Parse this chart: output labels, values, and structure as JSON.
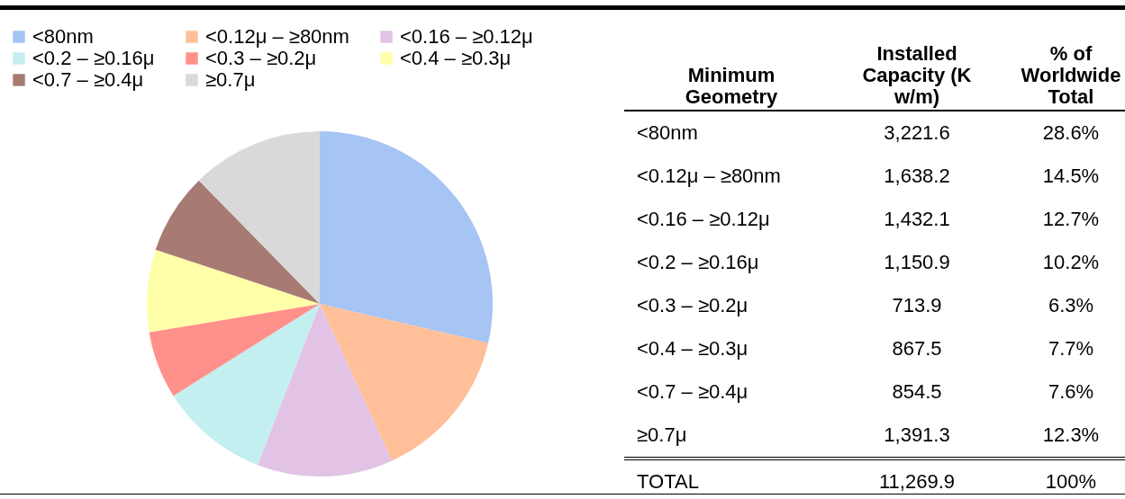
{
  "chart_data": {
    "type": "pie",
    "categories": [
      "<80nm",
      "<0.12μ – ≥80nm",
      "<0.16 – ≥0.12μ",
      "<0.2 – ≥0.16μ",
      "<0.3 – ≥0.2μ",
      "<0.4 – ≥0.3μ",
      "<0.7 – ≥0.4μ",
      "≥0.7μ"
    ],
    "values": [
      28.6,
      14.5,
      12.7,
      10.2,
      6.3,
      7.7,
      7.6,
      12.3
    ],
    "colors": [
      "#a6c4f4",
      "#ffbf99",
      "#e3c3e5",
      "#c4eff0",
      "#ff908a",
      "#ffffaa",
      "#a77a74",
      "#d9d9d9"
    ],
    "legend": "top left",
    "annotations": [
      "Minimum Geometry",
      "Installed Capacity (K w/m)",
      "% of Worldwide Total",
      "3,221.6",
      "1,638.2",
      "1,432.1",
      "1,150.9",
      "713.9",
      "867.5",
      "854.5",
      "1,391.3",
      "28.6%",
      "14.5%",
      "12.7%",
      "10.2%",
      "6.3%",
      "7.7%",
      "7.6%",
      "12.3%",
      "TOTAL",
      "11,269.9",
      "100%"
    ]
  }
}
